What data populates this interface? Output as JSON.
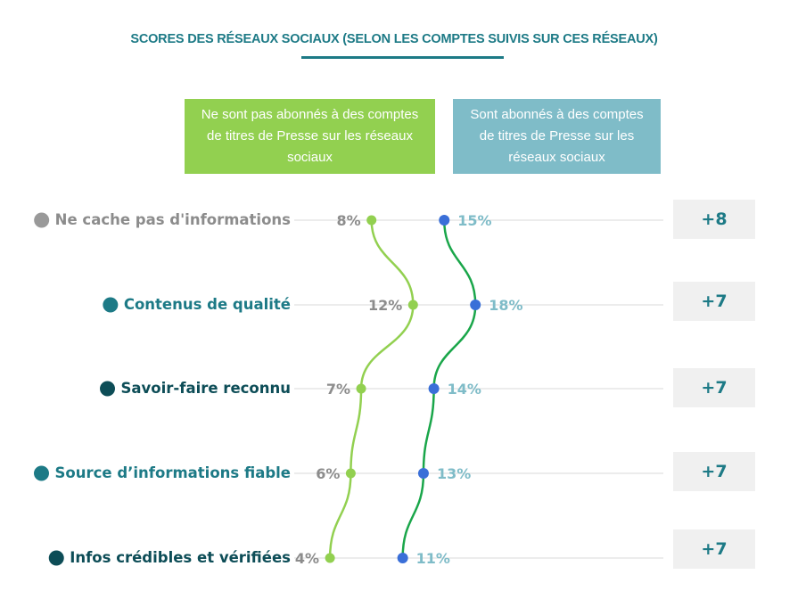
{
  "title": "SCORES DES RÉSEAUX SOCIAUX (SELON LES COMPTES SUIVIS SUR CES RÉSEAUX)",
  "colors": {
    "title": "#1d7a86",
    "series_a": "#92d050",
    "series_a_line": "#92d050",
    "series_b_dot": "#3a6fd8",
    "series_b_line": "#1aa64a",
    "header_b": "#7fbcc8",
    "value_a_text": "#8c8c8c",
    "value_b_text": "#7fbcc8",
    "diff_box": "#f0f0f0"
  },
  "chart_data": {
    "type": "line",
    "orientation": "horizontal-dot-plot",
    "categories": [
      "Ne cache pas d'informations",
      "Contenus de qualité",
      "Savoir-faire reconnu",
      "Source d’informations fiable",
      "Infos crédibles et vérifiées"
    ],
    "category_dot_colors": [
      "#999999",
      "#1d7a86",
      "#0d4d57",
      "#1d7a86",
      "#0d4d57"
    ],
    "category_text_colors": [
      "#8c8c8c",
      "#1d7a86",
      "#0d4d57",
      "#1d7a86",
      "#0d4d57"
    ],
    "series": [
      {
        "name": "Ne sont pas abonnés à des comptes de titres de Presse sur les réseaux sociaux",
        "values": [
          8,
          12,
          7,
          6,
          4
        ],
        "labels": [
          "8%",
          "12%",
          "7%",
          "6%",
          "4%"
        ]
      },
      {
        "name": "Sont abonnés à des comptes de titres de Presse sur les réseaux sociaux",
        "values": [
          15,
          18,
          14,
          13,
          11
        ],
        "labels": [
          "15%",
          "18%",
          "14%",
          "13%",
          "11%"
        ]
      }
    ],
    "differences": [
      "+8",
      "+7",
      "+7",
      "+7",
      "+7"
    ],
    "xlim": [
      0,
      20
    ],
    "grid": true
  }
}
